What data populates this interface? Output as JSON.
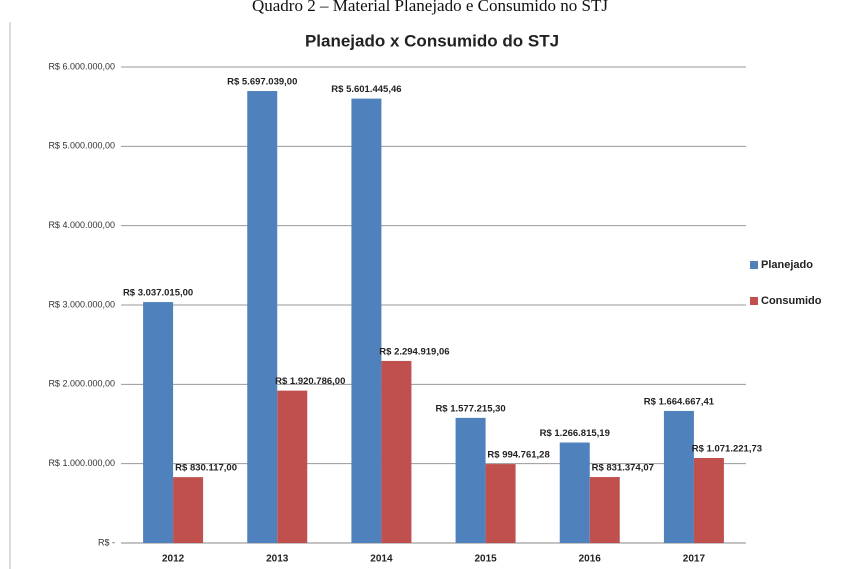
{
  "caption": "Quadro 2 – Material Planejado e Consumido no STJ",
  "chart_data": {
    "type": "bar",
    "title": "Planejado x Consumido do STJ",
    "categories": [
      "2012",
      "2013",
      "2014",
      "2015",
      "2016",
      "2017"
    ],
    "series": [
      {
        "name": "Planejado",
        "color": "#4f81bd",
        "values": [
          3037015.0,
          5697039.0,
          5601445.46,
          1577215.3,
          1266815.19,
          1664667.41
        ],
        "value_labels": [
          "R$ 3.037.015,00",
          "R$ 5.697.039,00",
          "R$ 5.601.445,46",
          "R$ 1.577.215,30",
          "R$ 1.266.815,19",
          "R$ 1.664.667,41"
        ]
      },
      {
        "name": "Consumido",
        "color": "#c0504d",
        "values": [
          830117.0,
          1920786.0,
          2294919.06,
          994761.28,
          831374.07,
          1071221.73
        ],
        "value_labels": [
          "R$ 830.117,00",
          "R$ 1.920.786,00",
          "R$ 2.294.919,06",
          "R$ 994.761,28",
          "R$ 831.374,07",
          "R$ 1.071.221,73"
        ]
      }
    ],
    "ylim": [
      0,
      6000000
    ],
    "yticks": [
      {
        "value": 0,
        "label": "R$ -"
      },
      {
        "value": 1000000,
        "label": "R$ 1.000.000,00"
      },
      {
        "value": 2000000,
        "label": "R$ 2.000.000,00"
      },
      {
        "value": 3000000,
        "label": "R$ 3.000.000,00"
      },
      {
        "value": 4000000,
        "label": "R$ 4.000.000,00"
      },
      {
        "value": 5000000,
        "label": "R$ 5.000.000,00"
      },
      {
        "value": 6000000,
        "label": "R$ 6.000.000,00"
      }
    ],
    "grid": true,
    "legend": "right"
  }
}
